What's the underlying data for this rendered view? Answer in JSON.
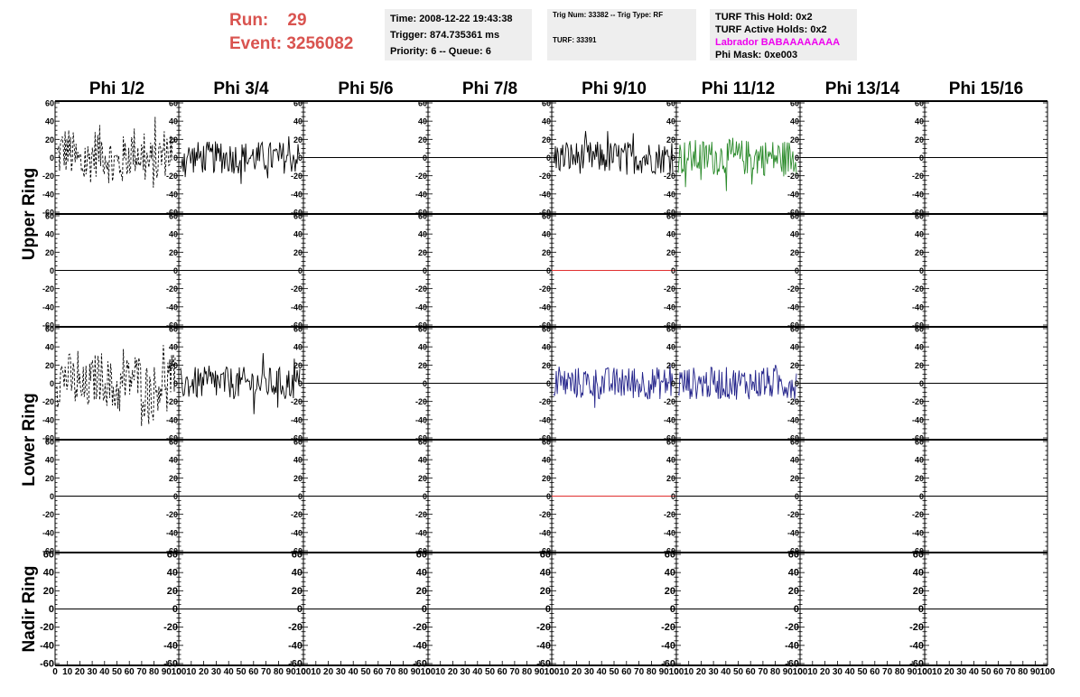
{
  "header": {
    "run_label": "Run:",
    "run_value": "29",
    "event_label": "Event:",
    "event_value": "3256082"
  },
  "info1": {
    "time": "Time: 2008-12-22 19:43:38",
    "trigger": "Trigger: 874.735361 ms",
    "priority": "Priority: 6 -- Queue: 6"
  },
  "info2": {
    "trig": "Trig Num: 33382 -- Trig Type: RF",
    "turf": "TURF: 33391"
  },
  "info3": {
    "hold": "TURF This Hold: 0x2",
    "active": "TURF Active Holds: 0x2",
    "labrador": "Labrador BABAAAAAAAA",
    "phimask": "Phi Mask: 0xe003"
  },
  "colors": {
    "trace_black": "#000000",
    "trace_green": "#2a8a2a",
    "trace_blue": "#22228a",
    "trace_red": "#e03030",
    "info_bg": "#eeeeee",
    "run_text": "#d9534f",
    "labrador_text": "#ee00ee"
  },
  "chart_data": {
    "type": "line",
    "columns": [
      "Phi 1/2",
      "Phi 3/4",
      "Phi 5/6",
      "Phi 7/8",
      "Phi 9/10",
      "Phi 11/12",
      "Phi 13/14",
      "Phi 15/16"
    ],
    "ring_labels": [
      "Upper Ring",
      "Lower Ring",
      "Nadir Ring"
    ],
    "ylim": [
      -60,
      60
    ],
    "yticks": [
      -60,
      -40,
      -20,
      0,
      20,
      40,
      60
    ],
    "xlim": [
      0,
      100
    ],
    "xticks": [
      0,
      10,
      20,
      30,
      40,
      50,
      60,
      70,
      80,
      90,
      100
    ],
    "grid": false,
    "rows": [
      [
        "dashed",
        "black",
        "flat",
        "flat",
        "black",
        "green",
        "flat",
        "flat"
      ],
      [
        "flat",
        "flat",
        "flat",
        "flat",
        "redflat",
        "flat",
        "flat",
        "flat"
      ],
      [
        "dashed",
        "black",
        "flat",
        "flat",
        "blue",
        "blue",
        "flat",
        "flat"
      ],
      [
        "flat",
        "flat",
        "flat",
        "flat",
        "redflat",
        "flat",
        "flat",
        "flat"
      ],
      [
        "flat",
        "flat",
        "flat",
        "flat",
        "flat",
        "flat",
        "flat",
        "flat"
      ]
    ]
  }
}
